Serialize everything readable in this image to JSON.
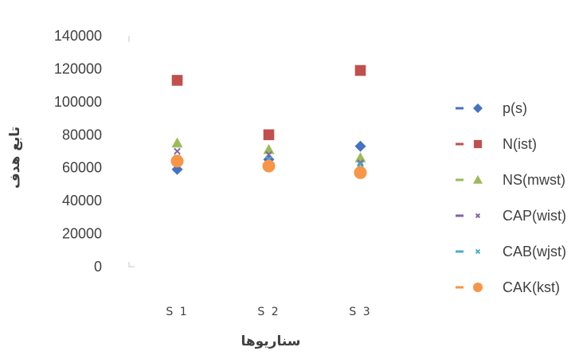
{
  "chart_data": {
    "type": "scatter",
    "title": "",
    "xlabel": "سناریوها",
    "ylabel": "تابع هدف",
    "categories": [
      "S 1",
      "S 2",
      "S 3"
    ],
    "ylim": [
      0,
      140000
    ],
    "yticks": [
      0,
      20000,
      40000,
      60000,
      80000,
      100000,
      120000,
      140000
    ],
    "legend_position": "right",
    "grid": false,
    "series": [
      {
        "name": "p(s)",
        "marker": "diamond",
        "color": "#4472C4",
        "values": [
          59000,
          65000,
          73000
        ]
      },
      {
        "name": "N(ist)",
        "marker": "square",
        "color": "#C0504D",
        "values": [
          113000,
          80000,
          119000
        ]
      },
      {
        "name": "NS(mwst)",
        "marker": "triangle",
        "color": "#9BBB59",
        "values": [
          75000,
          71000,
          66000
        ]
      },
      {
        "name": "CAP(wist)",
        "marker": "x",
        "color": "#8064A2",
        "values": [
          70000,
          68000,
          63000
        ]
      },
      {
        "name": "CAB(wjst)",
        "marker": "x",
        "color": "#4BACC6",
        "values": [
          66000,
          65000,
          62000
        ]
      },
      {
        "name": "CAK(kst)",
        "marker": "circle",
        "color": "#F79646",
        "values": [
          64000,
          61000,
          57000
        ]
      }
    ]
  }
}
